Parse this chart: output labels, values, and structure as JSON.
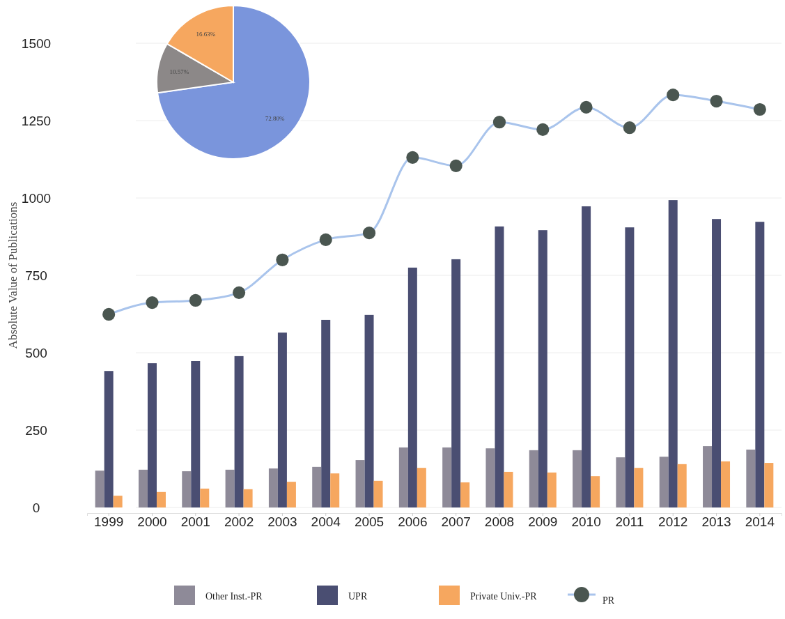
{
  "chart_data": [
    {
      "type": "bar",
      "ylabel": "Absolute Value of  Publications",
      "categories": [
        "1999",
        "2000",
        "2001",
        "2002",
        "2003",
        "2004",
        "2005",
        "2006",
        "2007",
        "2008",
        "2009",
        "2010",
        "2011",
        "2012",
        "2013",
        "2014"
      ],
      "series": [
        {
          "name": "Other Inst.-PR",
          "color": "#8e8a98",
          "values": [
            119,
            122,
            117,
            122,
            126,
            131,
            153,
            194,
            194,
            191,
            185,
            185,
            162,
            164,
            198,
            187
          ]
        },
        {
          "name": "UPR",
          "color": "#4a4e72",
          "values": [
            441,
            466,
            473,
            489,
            565,
            606,
            622,
            775,
            802,
            908,
            896,
            973,
            905,
            993,
            932,
            923
          ]
        },
        {
          "name": "Private Univ.-PR",
          "color": "#f6a75f",
          "values": [
            38,
            50,
            61,
            59,
            83,
            110,
            86,
            128,
            81,
            115,
            113,
            101,
            128,
            140,
            149,
            144
          ]
        },
        {
          "name": "PR",
          "type": "line",
          "color": "#a9c4ec",
          "marker": "circle",
          "values": [
            624,
            662,
            669,
            694,
            800,
            865,
            887,
            1131,
            1104,
            1245,
            1221,
            1293,
            1227,
            1333,
            1313,
            1286
          ]
        }
      ],
      "ylim": [
        0,
        1500
      ],
      "yticks": [
        0,
        250,
        500,
        750,
        1000,
        1250,
        1500
      ],
      "grid": "y",
      "legend": "bottom"
    },
    {
      "type": "pie",
      "categories": [
        null,
        null,
        null
      ],
      "values": [
        72.8,
        10.57,
        16.63
      ],
      "colors": [
        "#7a95dc",
        "#8c8888",
        "#f6a75f"
      ],
      "value_labels": [
        "72.80%",
        "10.57%",
        "16.63%"
      ]
    }
  ]
}
